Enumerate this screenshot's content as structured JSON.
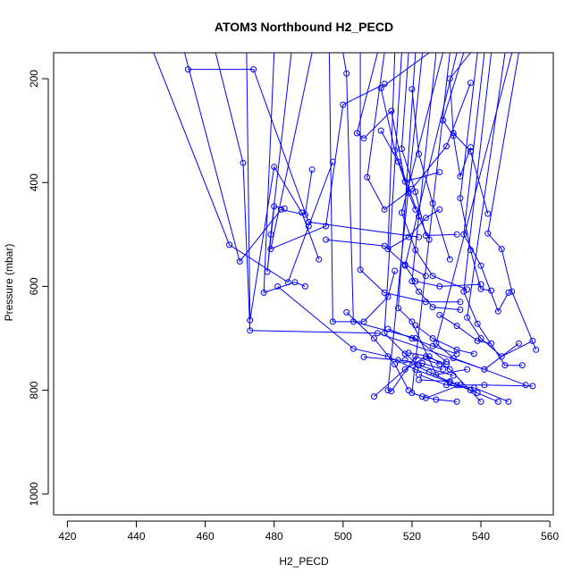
{
  "chart_data": {
    "type": "line",
    "title": "ATOM3 Northbound H2_PECD",
    "xlabel": "H2_PECD",
    "ylabel": "Pressure (mbar)",
    "xlim": [
      416,
      561
    ],
    "ylim": [
      150,
      1040
    ],
    "y_inverted": true,
    "x_ticks": [
      420,
      440,
      460,
      480,
      500,
      520,
      540,
      560
    ],
    "y_ticks": [
      200,
      400,
      600,
      800,
      1000
    ],
    "grid": false,
    "legend": "none",
    "color": "#0000ff",
    "series": [
      {
        "values": [
          [
            445,
            150
          ],
          [
            467,
            520
          ],
          [
            484,
            592
          ],
          [
            490,
            484
          ],
          [
            497,
            360
          ]
        ]
      },
      {
        "values": [
          [
            454,
            150
          ],
          [
            470,
            552
          ],
          [
            482,
            452
          ],
          [
            489,
            462
          ],
          [
            491,
            375
          ]
        ]
      },
      {
        "values": [
          [
            463,
            150
          ],
          [
            471,
            362
          ],
          [
            473,
            685
          ],
          [
            510,
            690
          ],
          [
            541,
            760
          ],
          [
            551,
            710
          ]
        ]
      },
      {
        "values": [
          [
            472,
            150
          ],
          [
            473,
            665
          ],
          [
            480,
            370
          ],
          [
            488,
            458
          ],
          [
            493,
            548
          ]
        ]
      },
      {
        "values": [
          [
            480,
            150
          ],
          [
            477,
            612
          ],
          [
            486,
            592
          ],
          [
            489,
            600
          ]
        ]
      },
      {
        "values": [
          [
            485,
            150
          ],
          [
            479,
            500
          ],
          [
            478,
            572
          ],
          [
            480,
            446
          ],
          [
            483,
            450
          ]
        ]
      },
      {
        "values": [
          [
            491,
            150
          ],
          [
            479,
            528
          ],
          [
            495,
            484
          ],
          [
            500,
            250
          ],
          [
            512,
            210
          ]
        ]
      },
      {
        "values": [
          [
            496,
            150
          ],
          [
            497,
            668
          ],
          [
            506,
            668
          ],
          [
            513,
            620
          ],
          [
            515,
            570
          ]
        ]
      },
      {
        "values": [
          [
            500,
            150
          ],
          [
            501,
            190
          ],
          [
            503,
            668
          ],
          [
            521,
            700
          ],
          [
            530,
            745
          ]
        ]
      },
      {
        "values": [
          [
            505,
            150
          ],
          [
            505,
            568
          ],
          [
            512,
            612
          ],
          [
            524,
            630
          ],
          [
            534,
            630
          ]
        ]
      },
      {
        "values": [
          [
            510,
            150
          ],
          [
            504,
            305
          ],
          [
            506,
            315
          ],
          [
            514,
            262
          ],
          [
            518,
            398
          ],
          [
            528,
            380
          ]
        ]
      },
      {
        "values": [
          [
            512,
            150
          ],
          [
            507,
            390
          ],
          [
            512,
            452
          ],
          [
            520,
            412
          ],
          [
            530,
            330
          ],
          [
            537,
            208
          ]
        ]
      },
      {
        "values": [
          [
            515,
            150
          ],
          [
            513,
            528
          ],
          [
            519,
            505
          ],
          [
            524,
            468
          ],
          [
            528,
            452
          ]
        ]
      },
      {
        "values": [
          [
            517,
            150
          ],
          [
            512,
            690
          ],
          [
            518,
            730
          ],
          [
            522,
            752
          ],
          [
            532,
            772
          ]
        ]
      },
      {
        "values": [
          [
            519,
            150
          ],
          [
            517,
            335
          ],
          [
            521,
            418
          ],
          [
            524,
            502
          ],
          [
            533,
            500
          ]
        ]
      },
      {
        "values": [
          [
            521,
            150
          ],
          [
            516,
            642
          ],
          [
            520,
            668
          ],
          [
            527,
            770
          ],
          [
            536,
            760
          ]
        ]
      },
      {
        "values": [
          [
            523,
            150
          ],
          [
            513,
            800
          ],
          [
            514,
            802
          ],
          [
            521,
            735
          ],
          [
            528,
            750
          ]
        ]
      },
      {
        "values": [
          [
            525,
            150
          ],
          [
            511,
            218
          ],
          [
            515,
            338
          ],
          [
            522,
            465
          ],
          [
            525,
            510
          ]
        ]
      },
      {
        "values": [
          [
            527,
            150
          ],
          [
            520,
            590
          ],
          [
            522,
            610
          ],
          [
            526,
            640
          ],
          [
            534,
            645
          ]
        ]
      },
      {
        "values": [
          [
            529,
            150
          ],
          [
            517,
            458
          ],
          [
            521,
            530
          ],
          [
            526,
            580
          ],
          [
            536,
            606
          ]
        ]
      },
      {
        "values": [
          [
            531,
            150
          ],
          [
            520,
            805
          ],
          [
            523,
            812
          ],
          [
            527,
            818
          ],
          [
            533,
            822
          ]
        ]
      },
      {
        "values": [
          [
            533,
            150
          ],
          [
            518,
            560
          ],
          [
            521,
            590
          ],
          [
            528,
            600
          ],
          [
            540,
            596
          ]
        ]
      },
      {
        "values": [
          [
            535,
            150
          ],
          [
            529,
            280
          ],
          [
            532,
            310
          ],
          [
            534,
            388
          ],
          [
            537,
            332
          ]
        ]
      },
      {
        "values": [
          [
            537,
            150
          ],
          [
            531,
            200
          ],
          [
            532,
            305
          ],
          [
            537,
            340
          ],
          [
            542,
            460
          ]
        ]
      },
      {
        "values": [
          [
            539,
            150
          ],
          [
            534,
            430
          ],
          [
            537,
            530
          ],
          [
            540,
            605
          ],
          [
            543,
            608
          ]
        ]
      },
      {
        "values": [
          [
            541,
            150
          ],
          [
            535,
            500
          ],
          [
            540,
            560
          ],
          [
            545,
            648
          ],
          [
            548,
            612
          ]
        ]
      },
      {
        "values": [
          [
            543,
            150
          ],
          [
            535,
            610
          ],
          [
            539,
            672
          ],
          [
            547,
            752
          ],
          [
            552,
            752
          ]
        ]
      },
      {
        "values": [
          [
            547,
            150
          ],
          [
            536,
            660
          ],
          [
            540,
            700
          ],
          [
            546,
            735
          ],
          [
            555,
            705
          ]
        ]
      },
      {
        "values": [
          [
            549,
            150
          ],
          [
            527,
            710
          ],
          [
            532,
            738
          ],
          [
            541,
            760
          ],
          [
            553,
            790
          ]
        ]
      },
      {
        "values": [
          [
            551,
            150
          ],
          [
            542,
            498
          ],
          [
            546,
            528
          ],
          [
            549,
            610
          ],
          [
            556,
            722
          ]
        ]
      },
      {
        "values": [
          [
            455,
            182
          ],
          [
            474,
            182
          ],
          [
            490,
            476
          ],
          [
            522,
            505
          ]
        ]
      },
      {
        "values": [
          [
            520,
            220
          ],
          [
            522,
            345
          ],
          [
            526,
            440
          ],
          [
            531,
            548
          ]
        ]
      },
      {
        "values": [
          [
            481,
            600
          ],
          [
            503,
            720
          ],
          [
            513,
            735
          ],
          [
            521,
            760
          ],
          [
            531,
            785
          ]
        ]
      },
      {
        "values": [
          [
            495,
            510
          ],
          [
            512,
            522
          ],
          [
            518,
            558
          ],
          [
            524,
            580
          ]
        ]
      },
      {
        "values": [
          [
            511,
            300
          ],
          [
            516,
            360
          ],
          [
            519,
            420
          ],
          [
            521,
            452
          ]
        ]
      },
      {
        "values": [
          [
            501,
            650
          ],
          [
            509,
            700
          ],
          [
            515,
            750
          ],
          [
            519,
            800
          ]
        ]
      },
      {
        "values": [
          [
            509,
            812
          ],
          [
            518,
            760
          ],
          [
            524,
            735
          ],
          [
            530,
            750
          ]
        ]
      },
      {
        "values": [
          [
            519,
            728
          ],
          [
            525,
            735
          ],
          [
            531,
            760
          ],
          [
            540,
            822
          ]
        ]
      },
      {
        "values": [
          [
            522,
            770
          ],
          [
            530,
            790
          ],
          [
            538,
            795
          ],
          [
            548,
            822
          ]
        ]
      },
      {
        "values": [
          [
            524,
            815
          ],
          [
            534,
            790
          ],
          [
            541,
            790
          ],
          [
            555,
            792
          ]
        ]
      },
      {
        "values": [
          [
            506,
            736
          ],
          [
            516,
            742
          ],
          [
            523,
            748
          ],
          [
            529,
            760
          ]
        ]
      },
      {
        "values": [
          [
            521,
            675
          ],
          [
            526,
            700
          ],
          [
            533,
            722
          ],
          [
            538,
            730
          ]
        ]
      },
      {
        "values": [
          [
            528,
            655
          ],
          [
            533,
            676
          ],
          [
            539,
            705
          ],
          [
            543,
            710
          ]
        ]
      },
      {
        "values": [
          [
            522,
            780
          ],
          [
            531,
            783
          ],
          [
            537,
            800
          ],
          [
            545,
            822
          ]
        ]
      },
      {
        "values": [
          [
            513,
            682
          ],
          [
            520,
            700
          ],
          [
            526,
            715
          ],
          [
            533,
            730
          ]
        ]
      },
      {
        "values": [
          [
            518,
            742
          ],
          [
            525,
            765
          ],
          [
            533,
            790
          ],
          [
            539,
            805
          ]
        ]
      }
    ]
  }
}
